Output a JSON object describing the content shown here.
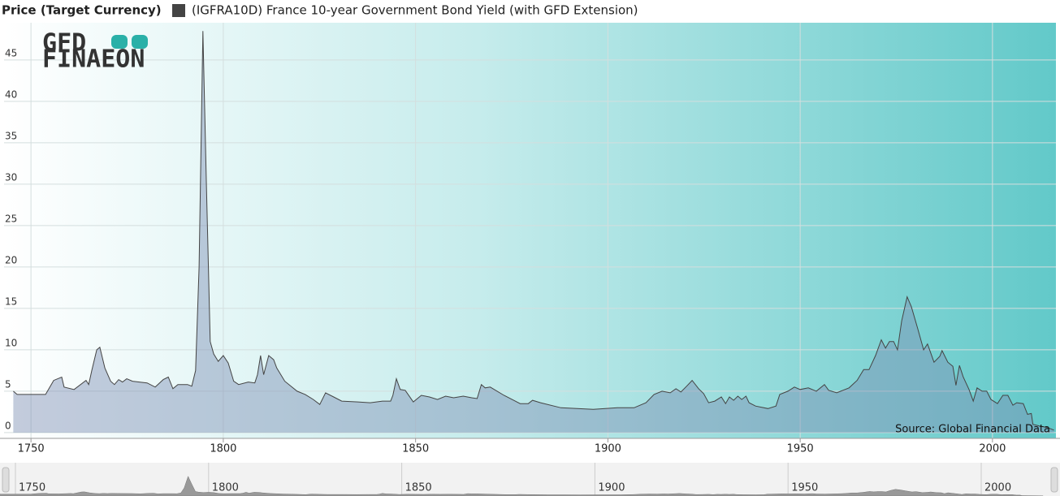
{
  "chart_data": {
    "type": "area",
    "title": "Price (Target Currency)",
    "logo_top": "GFD",
    "logo_bottom": "FINAEON",
    "source": "Source: Global Financial Data",
    "xlim": [
      1743,
      2016.5
    ],
    "ylim": [
      -0.7,
      49.5
    ],
    "xticks": [
      1750,
      1800,
      1850,
      1900,
      1950,
      2000
    ],
    "yticks": [
      0,
      5,
      10,
      15,
      20,
      25,
      30,
      35,
      40,
      45
    ],
    "grid": true,
    "x": [
      1745.4,
      1746.4,
      1753.8,
      1755.9,
      1758.0,
      1758.6,
      1761.2,
      1764.3,
      1765.0,
      1765.8,
      1767.1,
      1767.9,
      1769.2,
      1770.7,
      1771.7,
      1772.8,
      1773.8,
      1774.9,
      1776.4,
      1780.2,
      1782.3,
      1784.4,
      1785.7,
      1786.9,
      1788.2,
      1790.7,
      1791.8,
      1792.8,
      1793.7,
      1794.7,
      1795.6,
      1796.6,
      1797.5,
      1798.7,
      1800.0,
      1801.3,
      1802.7,
      1804.0,
      1806.5,
      1808.2,
      1808.9,
      1809.7,
      1810.5,
      1811.8,
      1813.1,
      1813.9,
      1816.0,
      1819.2,
      1821.3,
      1823.4,
      1825.1,
      1826.6,
      1828.7,
      1830.8,
      1835.0,
      1838.2,
      1841.4,
      1843.5,
      1844.1,
      1845.0,
      1846.0,
      1847.3,
      1849.4,
      1851.5,
      1853.6,
      1855.7,
      1857.8,
      1859.9,
      1862.4,
      1864.6,
      1866.0,
      1867.1,
      1868.1,
      1869.4,
      1873.0,
      1877.2,
      1879.3,
      1880.4,
      1882.5,
      1887.8,
      1892.0,
      1896.2,
      1902.5,
      1906.8,
      1909.9,
      1912.0,
      1914.1,
      1916.2,
      1917.7,
      1919.0,
      1920.5,
      1921.9,
      1923.6,
      1924.9,
      1926.2,
      1927.8,
      1929.5,
      1930.6,
      1931.6,
      1932.7,
      1933.8,
      1934.8,
      1935.9,
      1936.7,
      1938.4,
      1941.6,
      1943.7,
      1944.7,
      1946.8,
      1948.5,
      1950.0,
      1952.1,
      1954.2,
      1956.3,
      1957.4,
      1959.5,
      1962.7,
      1964.8,
      1966.5,
      1967.9,
      1969.6,
      1971.1,
      1972.2,
      1973.2,
      1974.3,
      1975.3,
      1976.4,
      1977.8,
      1978.9,
      1980.6,
      1982.1,
      1983.1,
      1984.8,
      1986.3,
      1986.9,
      1988.4,
      1989.7,
      1990.5,
      1991.4,
      1992.4,
      1993.9,
      1995.0,
      1996.0,
      1997.3,
      1998.5,
      1999.6,
      2001.3,
      2002.7,
      2004.0,
      2005.3,
      2006.3,
      2008.0,
      2009.1,
      2010.1,
      2010.5,
      2012.2,
      2014.3,
      2016.0
    ],
    "series": [
      {
        "name": "(IGFRA10D) France 10-year Government Bond Yield (with GFD Extension)",
        "color": "#444444",
        "values": [
          5.0,
          4.6,
          4.6,
          6.3,
          6.7,
          5.5,
          5.2,
          6.3,
          5.8,
          7.5,
          10.0,
          10.3,
          7.8,
          6.2,
          5.8,
          6.4,
          6.1,
          6.5,
          6.2,
          6.0,
          5.5,
          6.4,
          6.7,
          5.3,
          5.8,
          5.8,
          5.6,
          7.5,
          20,
          48.5,
          30,
          11,
          9.5,
          8.6,
          9.3,
          8.4,
          6.2,
          5.8,
          6.1,
          6.0,
          7.0,
          9.3,
          7.0,
          9.3,
          8.8,
          7.8,
          6.2,
          5.0,
          4.6,
          4.0,
          3.4,
          4.8,
          4.3,
          3.8,
          3.7,
          3.6,
          3.8,
          3.8,
          4.5,
          6.5,
          5.2,
          5.1,
          3.7,
          4.5,
          4.3,
          4.0,
          4.4,
          4.2,
          4.4,
          4.2,
          4.1,
          5.8,
          5.4,
          5.5,
          4.5,
          3.5,
          3.5,
          3.9,
          3.6,
          3.0,
          2.9,
          2.8,
          3.0,
          3.0,
          3.6,
          4.6,
          5.0,
          4.8,
          5.3,
          4.9,
          5.6,
          6.3,
          5.3,
          4.7,
          3.6,
          3.8,
          4.3,
          3.5,
          4.3,
          3.9,
          4.4,
          4.0,
          4.4,
          3.6,
          3.2,
          2.9,
          3.2,
          4.6,
          5.0,
          5.5,
          5.2,
          5.4,
          5.0,
          5.8,
          5.1,
          4.8,
          5.4,
          6.3,
          7.6,
          7.6,
          9.3,
          11.2,
          10.2,
          11.0,
          11.0,
          10.0,
          13.5,
          16.4,
          15.2,
          12.5,
          10.0,
          10.7,
          8.5,
          9.2,
          9.9,
          8.5,
          8.0,
          5.7,
          8.1,
          6.7,
          5.2,
          3.8,
          5.4,
          5.0,
          5.0,
          4.0,
          3.5,
          4.5,
          4.5,
          3.3,
          3.6,
          3.5,
          2.2,
          2.3,
          1.0,
          0.8,
          0.6,
          0.3
        ]
      }
    ]
  }
}
